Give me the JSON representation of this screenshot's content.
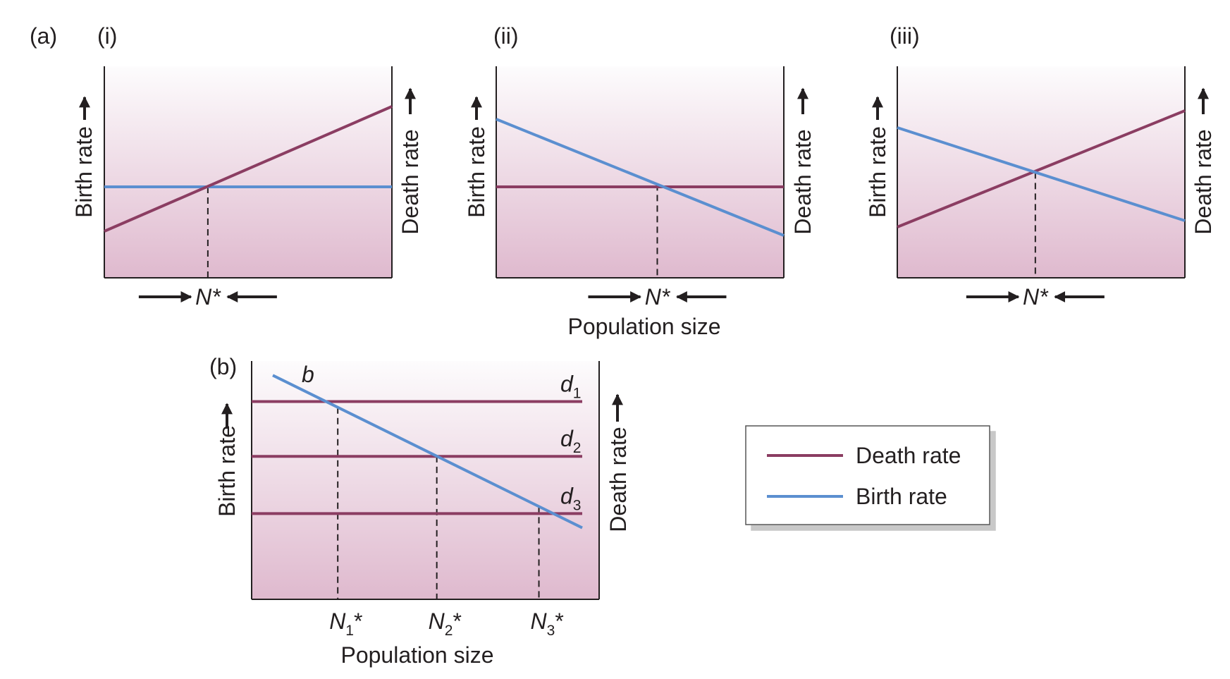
{
  "panel_a": {
    "label": "(a)",
    "xlabel": "Population size",
    "subpanels": [
      {
        "label": "(i)",
        "ylabel_left": "Birth rate",
        "ylabel_right": "Death rate",
        "equilibrium_label": "N*",
        "birth_line": [
          0.43,
          0.43
        ],
        "death_line": [
          0.22,
          0.81
        ],
        "intersection_x": 0.36
      },
      {
        "label": "(ii)",
        "ylabel_left": "Birth rate",
        "ylabel_right": "Death rate",
        "equilibrium_label": "N*",
        "birth_line": [
          0.75,
          0.2
        ],
        "death_line": [
          0.43,
          0.43
        ],
        "intersection_x": 0.56
      },
      {
        "label": "(iii)",
        "ylabel_left": "Birth rate",
        "ylabel_right": "Death rate",
        "equilibrium_label": "N*",
        "birth_line": [
          0.71,
          0.27
        ],
        "death_line": [
          0.24,
          0.79
        ],
        "intersection_x": 0.48
      }
    ]
  },
  "panel_b": {
    "label": "(b)",
    "ylabel_left": "Birth rate",
    "ylabel_right": "Death rate",
    "xlabel": "Population size",
    "birth_curve_label": "b",
    "birth_line": [
      0.94,
      0.3
    ],
    "death_levels": [
      {
        "name": "d",
        "sub": "1",
        "value": 0.83
      },
      {
        "name": "d",
        "sub": "2",
        "value": 0.6
      },
      {
        "name": "d",
        "sub": "3",
        "value": 0.36
      }
    ],
    "equilibria": [
      {
        "name": "N",
        "sub": "1",
        "star": "*",
        "x": 0.21
      },
      {
        "name": "N",
        "sub": "2",
        "star": "*",
        "x": 0.53
      },
      {
        "name": "N",
        "sub": "3",
        "star": "*",
        "x": 0.86
      }
    ]
  },
  "legend": {
    "items": [
      {
        "label": "Death rate",
        "color": "#8b3d62"
      },
      {
        "label": "Birth rate",
        "color": "#5b8fd0"
      }
    ]
  },
  "colors": {
    "death": "#8b3d62",
    "birth": "#5b8fd0",
    "bg_top": "#fdfcfd",
    "bg_bottom": "#dfb9ce"
  }
}
